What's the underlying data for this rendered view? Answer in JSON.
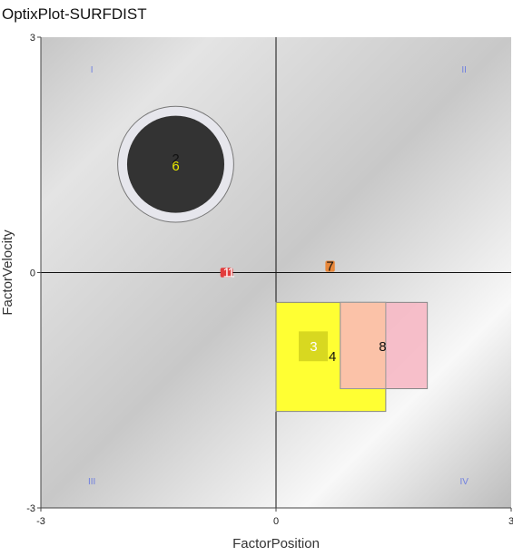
{
  "window": {
    "title": "OptixPlot-SURFDIST"
  },
  "chart_data": {
    "type": "scatter",
    "title": "",
    "xlabel": "FactorPosition",
    "ylabel": "FactorVelocity",
    "xlim": [
      -3,
      3
    ],
    "ylim": [
      -3,
      3
    ],
    "x_ticks": [
      {
        "value": -3,
        "label": "-3"
      },
      {
        "value": 0,
        "label": "0"
      },
      {
        "value": 3,
        "label": "3"
      }
    ],
    "y_ticks": [
      {
        "value": -3,
        "label": "-3"
      },
      {
        "value": 0,
        "label": "0"
      },
      {
        "value": 3,
        "label": "3"
      }
    ],
    "grid": false,
    "quadrants": [
      {
        "label": "I",
        "x": -2.35,
        "y": 2.55
      },
      {
        "label": "II",
        "x": 2.4,
        "y": 2.55
      },
      {
        "label": "III",
        "x": -2.35,
        "y": -2.7
      },
      {
        "label": "IV",
        "x": 2.4,
        "y": -2.7
      }
    ],
    "markers": [
      {
        "id": "6",
        "shape": "circle",
        "x": -1.28,
        "y": 1.38,
        "r": 0.62,
        "fill": "#333333",
        "ring": "#e6e6ec",
        "ring_r": 0.74,
        "label_color": "#e8e800",
        "extra_label": "2"
      },
      {
        "id": "1",
        "shape": "square",
        "x": -0.63,
        "y": 0.0,
        "w": 0.16,
        "h": 0.12,
        "fill": "#e23b3b",
        "label_color": "#ffffff",
        "extra_label": "1"
      },
      {
        "id": "7",
        "shape": "square",
        "x": 0.69,
        "y": 0.08,
        "w": 0.12,
        "h": 0.14,
        "fill": "#e8873a",
        "label_color": "#111111",
        "extra_label": "7"
      },
      {
        "id": "3",
        "shape": "rect",
        "x0": 0.0,
        "x1": 1.4,
        "y0": -1.77,
        "y1": -0.38,
        "fill": "#ffff33",
        "label_color": "#ffffff",
        "label_x": 0.48,
        "label_y": -0.93,
        "inner": {
          "x0": 0.29,
          "x1": 0.66,
          "y0": -1.13,
          "y1": -0.75,
          "fill": "#d8d820"
        }
      },
      {
        "id": "4",
        "shape": "label",
        "x": 0.72,
        "y": -1.06,
        "label_color": "#111111"
      },
      {
        "id": "8",
        "shape": "rect",
        "x0": 0.82,
        "x1": 1.93,
        "y0": -1.48,
        "y1": -0.38,
        "fill": "#f7b7c4",
        "label_color": "#111111",
        "label_x": 1.36,
        "label_y": -0.93,
        "overlap": {
          "x0": 0.82,
          "x1": 1.4,
          "fill": "#fbc2a8"
        }
      }
    ],
    "colors": {
      "plot_gradient_light": "#fbfbfb",
      "plot_gradient_dark": "#bdbdbd",
      "axis": "#111111",
      "quadrant_text": "#6f7fe0"
    }
  }
}
